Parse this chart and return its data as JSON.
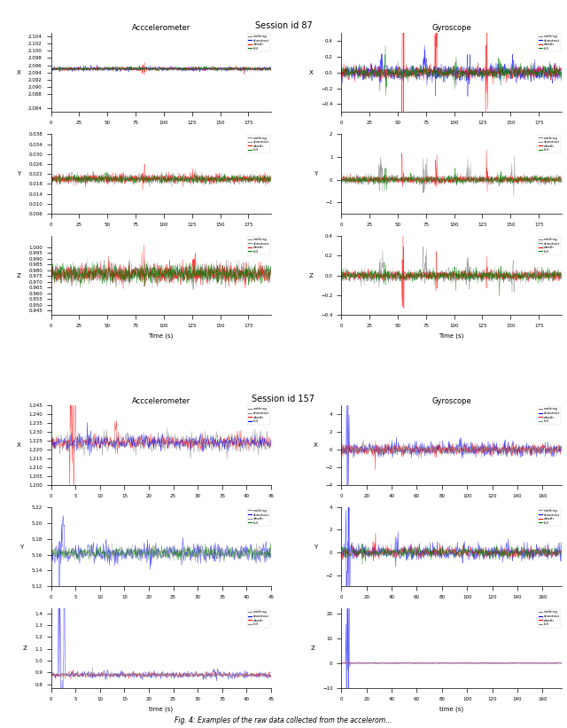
{
  "fig_width": 6.4,
  "fig_height": 8.21,
  "dpi": 100,
  "session1_id": "Session id 87",
  "session2_id": "Session id 157",
  "accel_title": "Acccelerometer",
  "gyro_title": "Gyroscope",
  "legend_labels": [
    "nothing",
    "shootout",
    "death",
    "kill"
  ],
  "seed": 42
}
